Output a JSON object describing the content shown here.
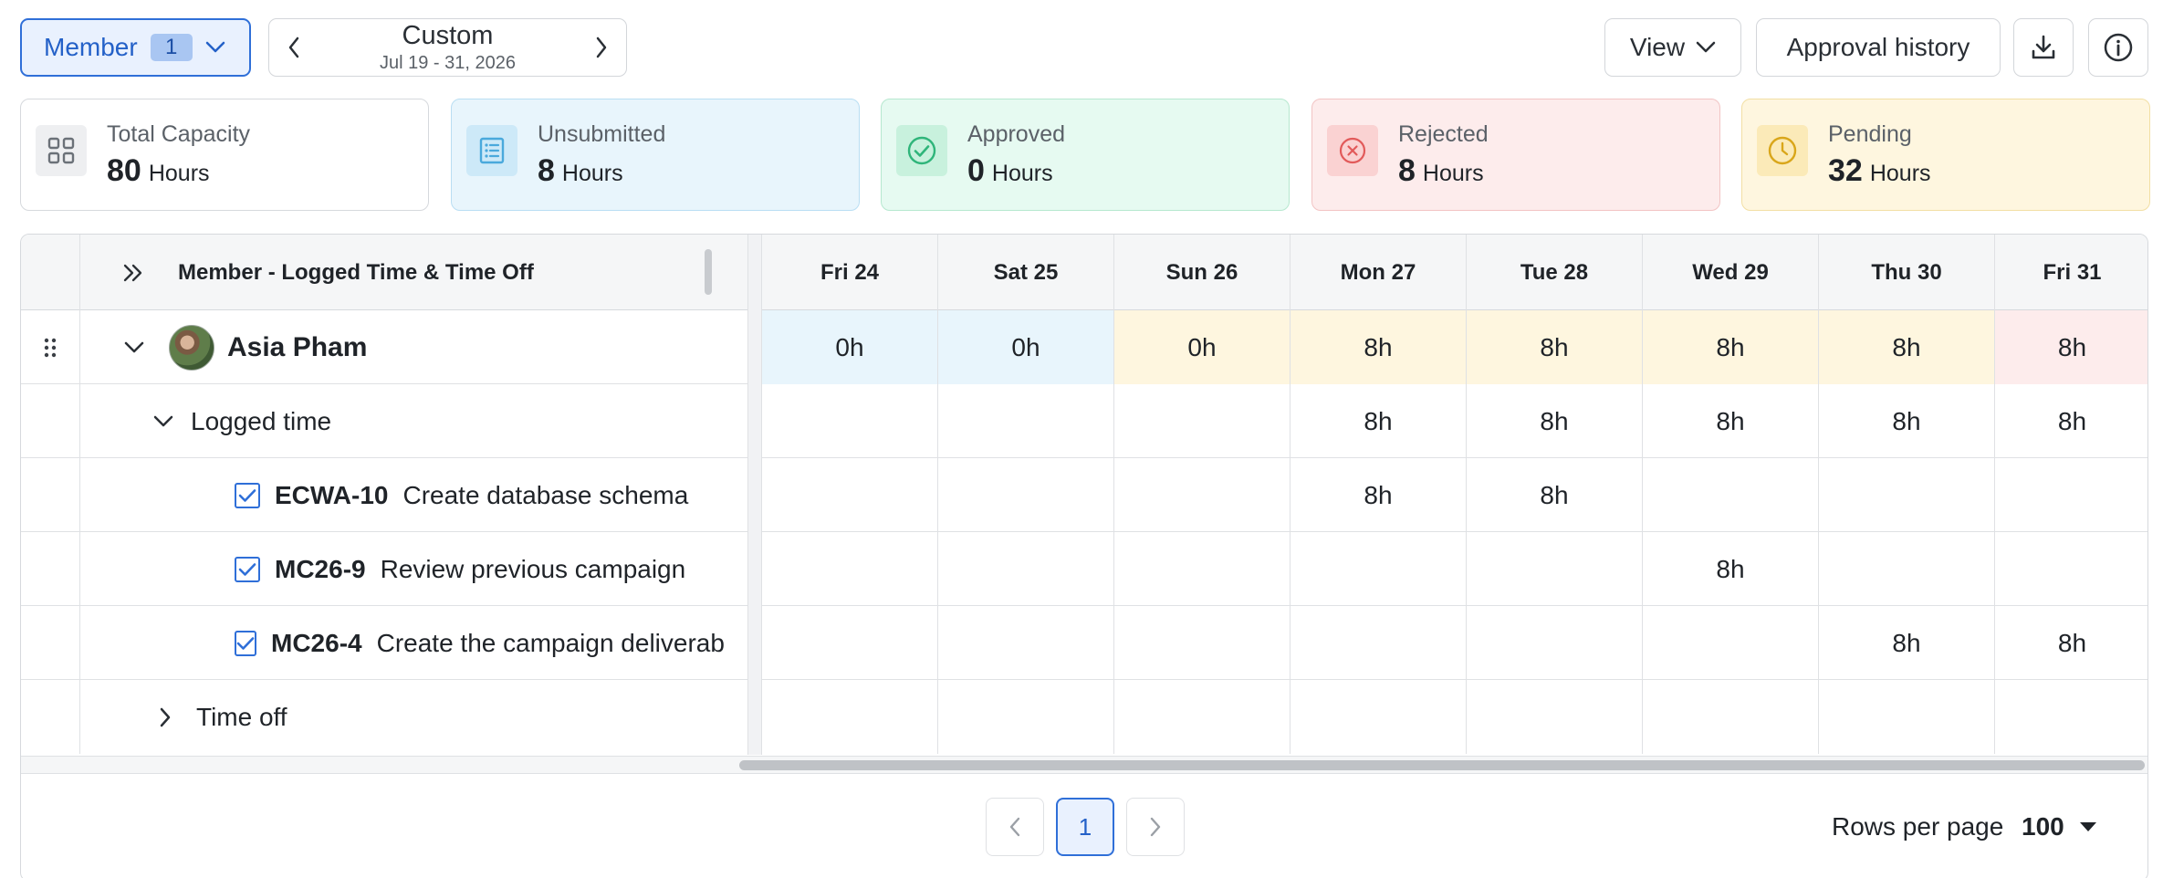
{
  "toolbar": {
    "member_label": "Member",
    "member_count": "1",
    "date_title": "Custom",
    "date_range": "Jul 19 - 31, 2026",
    "view_label": "View",
    "history_label": "Approval history",
    "icons": {
      "download": "download-icon",
      "info": "info-icon"
    }
  },
  "summary": {
    "total": {
      "label": "Total Capacity",
      "value": "80",
      "unit": "Hours",
      "icon": "grid-icon"
    },
    "unsubmitted": {
      "label": "Unsubmitted",
      "value": "8",
      "unit": "Hours",
      "icon": "list-icon",
      "color": "#4aa9dc"
    },
    "approved": {
      "label": "Approved",
      "value": "0",
      "unit": "Hours",
      "icon": "check-circle-icon",
      "color": "#2fb57a"
    },
    "rejected": {
      "label": "Rejected",
      "value": "8",
      "unit": "Hours",
      "icon": "x-circle-icon",
      "color": "#e25a5a"
    },
    "pending": {
      "label": "Pending",
      "value": "32",
      "unit": "Hours",
      "icon": "clock-icon",
      "color": "#d9a61a"
    }
  },
  "grid": {
    "header_title": "Member - Logged Time & Time Off",
    "days": [
      "Fri 24",
      "Sat 25",
      "Sun 26",
      "Mon 27",
      "Tue 28",
      "Wed 29",
      "Thu 30",
      "Fri 31"
    ],
    "member": {
      "name": "Asia Pham",
      "hours": [
        "0h",
        "0h",
        "0h",
        "8h",
        "8h",
        "8h",
        "8h",
        "8h"
      ]
    },
    "logged_time": {
      "label": "Logged time",
      "hours": [
        "",
        "",
        "",
        "8h",
        "8h",
        "8h",
        "8h",
        "8h"
      ]
    },
    "tasks": [
      {
        "key": "ECWA-10",
        "title": "Create database schema",
        "hours": [
          "",
          "",
          "",
          "8h",
          "8h",
          "",
          "",
          ""
        ]
      },
      {
        "key": "MC26-9",
        "title": "Review previous campaign",
        "hours": [
          "",
          "",
          "",
          "",
          "",
          "8h",
          "",
          ""
        ]
      },
      {
        "key": "MC26-4",
        "title": "Create the campaign deliverables",
        "hours": [
          "",
          "",
          "",
          "",
          "",
          "",
          "8h",
          "8h"
        ]
      }
    ],
    "time_off": {
      "label": "Time off",
      "hours": [
        "",
        "",
        "",
        "",
        "",
        "",
        "",
        ""
      ]
    }
  },
  "pagination": {
    "current_page": "1",
    "rows_per_page_label": "Rows per page",
    "rows_per_page_value": "100"
  }
}
